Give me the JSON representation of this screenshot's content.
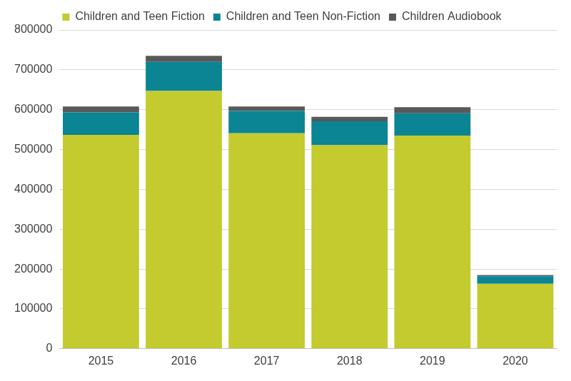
{
  "chart_data": {
    "type": "bar",
    "stacked": true,
    "legend": "top",
    "grid": true,
    "categories": [
      "2015",
      "2016",
      "2017",
      "2018",
      "2019",
      "2020"
    ],
    "series": [
      {
        "name": "Children and Teen Fiction",
        "color": "#c3cb2f",
        "values": [
          537000,
          647000,
          541000,
          511000,
          535000,
          163000
        ]
      },
      {
        "name": "Children and Teen Non-Fiction",
        "color": "#0b8493",
        "values": [
          56000,
          73000,
          56000,
          60000,
          56000,
          19000
        ]
      },
      {
        "name": "Children Audiobook",
        "color": "#595959",
        "values": [
          15000,
          15000,
          11000,
          11000,
          15000,
          3000
        ]
      }
    ],
    "ylim": [
      0,
      800000
    ],
    "yticks": [
      0,
      100000,
      200000,
      300000,
      400000,
      500000,
      600000,
      700000,
      800000
    ]
  }
}
